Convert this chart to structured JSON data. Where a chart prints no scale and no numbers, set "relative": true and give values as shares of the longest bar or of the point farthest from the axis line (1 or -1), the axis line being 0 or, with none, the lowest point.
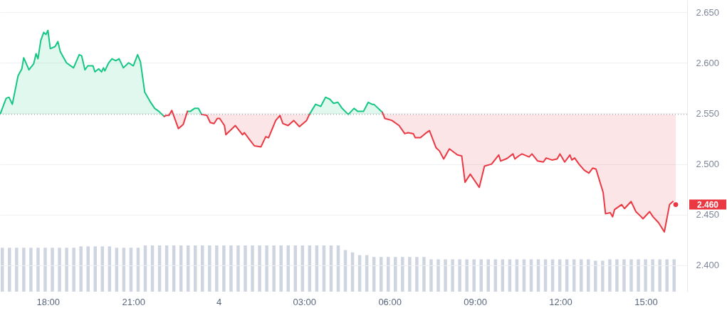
{
  "chart_data": [
    {
      "type": "line",
      "xlim": [
        "--01-03T16:19",
        "--01-04T16:27"
      ],
      "ylim": [
        2.374,
        2.662
      ],
      "xticks": [
        {
          "value": "--01-03T18:00",
          "label": "18:00"
        },
        {
          "value": "--01-03T21:00",
          "label": "21:00"
        },
        {
          "value": "--01-04T00:00",
          "label": "4"
        },
        {
          "value": "--01-04T03:00",
          "label": "03:00"
        },
        {
          "value": "--01-04T06:00",
          "label": "06:00"
        },
        {
          "value": "--01-04T09:00",
          "label": "09:00"
        },
        {
          "value": "--01-04T12:00",
          "label": "12:00"
        },
        {
          "value": "--01-04T15:00",
          "label": "15:00"
        }
      ],
      "yticks": [
        {
          "value": 2.4,
          "label": "2.400"
        },
        {
          "value": 2.45,
          "label": "2.450"
        },
        {
          "value": 2.5,
          "label": "2.500"
        },
        {
          "value": 2.55,
          "label": "2.550"
        },
        {
          "value": 2.6,
          "label": "2.600"
        },
        {
          "value": 2.65,
          "label": "2.650"
        }
      ],
      "grid": "y",
      "ref_lines": [
        {
          "axis": "y",
          "value": 2.549,
          "color": "#9aa0aa",
          "line_style": "dotted"
        }
      ],
      "annotations": [
        {
          "text": "2.460",
          "x": "--01-04T16:03",
          "y": 2.46
        }
      ],
      "series": [
        {
          "color": "#16c784",
          "x": [
            "--01-03T16:20",
            "--01-03T16:32",
            "--01-03T16:38",
            "--01-03T16:45",
            "--01-03T16:57",
            "--01-03T17:05",
            "--01-03T17:09",
            "--01-03T17:20",
            "--01-03T17:30",
            "--01-03T17:35",
            "--01-03T17:39",
            "--01-03T17:45",
            "--01-03T17:51",
            "--01-03T17:56",
            "--01-03T18:00",
            "--01-03T18:05",
            "--01-03T18:15",
            "--01-03T18:21",
            "--01-03T18:26",
            "--01-03T18:39",
            "--01-03T18:54",
            "--01-03T19:06",
            "--01-03T19:11",
            "--01-03T19:18",
            "--01-03T19:24",
            "--01-03T19:35",
            "--01-03T19:39",
            "--01-03T19:47",
            "--01-03T19:53",
            "--01-03T19:57",
            "--01-03T20:00",
            "--01-03T20:08",
            "--01-03T20:15",
            "--01-03T20:23",
            "--01-03T20:30",
            "--01-03T20:39",
            "--01-03T20:50",
            "--01-03T21:00",
            "--01-03T21:09",
            "--01-03T21:15",
            "--01-03T21:24",
            "--01-03T21:35",
            "--01-03T21:45",
            "--01-03T21:54",
            "--01-03T22:05",
            "--01-03T22:30",
            "--01-03T22:54",
            "--01-03T23:00",
            "--01-03T23:09",
            "--01-03T23:17",
            "--01-03T23:24",
            "--01-04T01:00",
            "--01-04T03:11",
            "--01-04T03:24",
            "--01-04T03:35",
            "--01-04T03:45",
            "--01-04T03:54",
            "--01-04T04:02",
            "--01-04T04:11",
            "--01-04T04:20",
            "--01-04T04:33",
            "--01-04T04:45",
            "--01-04T04:53",
            "--01-04T05:05",
            "--01-04T05:15",
            "--01-04T05:23",
            "--01-04T05:27",
            "--01-04T05:45"
          ],
          "values": [
            2.55,
            2.565,
            2.566,
            2.559,
            2.587,
            2.594,
            2.605,
            2.593,
            2.599,
            2.609,
            2.604,
            2.622,
            2.63,
            2.628,
            2.632,
            2.614,
            2.616,
            2.621,
            2.611,
            2.6,
            2.595,
            2.608,
            2.607,
            2.593,
            2.597,
            2.597,
            2.591,
            2.594,
            2.591,
            2.595,
            2.592,
            2.6,
            2.604,
            2.602,
            2.604,
            2.595,
            2.6,
            2.597,
            2.608,
            2.601,
            2.571,
            2.562,
            2.555,
            2.552,
            2.547,
            null,
            2.552,
            2.552,
            2.555,
            2.555,
            2.549,
            null,
            2.549,
            2.559,
            2.557,
            2.566,
            2.564,
            2.56,
            2.561,
            2.555,
            2.549,
            2.555,
            2.552,
            2.552,
            2.561,
            2.559,
            2.559,
            2.551
          ],
          "lower": [
            2.549,
            2.549,
            2.549,
            2.549,
            2.549,
            2.549,
            2.549,
            2.549,
            2.549,
            2.549,
            2.549,
            2.549,
            2.549,
            2.549,
            2.549,
            2.549,
            2.549,
            2.549,
            2.549,
            2.549,
            2.549,
            2.549,
            2.549,
            2.549,
            2.549,
            2.549,
            2.549,
            2.549,
            2.549,
            2.549,
            2.549,
            2.549,
            2.549,
            2.549,
            2.549,
            2.549,
            2.549,
            2.549,
            2.549,
            2.549,
            2.549,
            2.549,
            2.549,
            2.549,
            2.549,
            null,
            2.549,
            2.549,
            2.549,
            2.549,
            2.549,
            null,
            2.549,
            2.549,
            2.549,
            2.549,
            2.549,
            2.549,
            2.549,
            2.549,
            2.549,
            2.549,
            2.549,
            2.549,
            2.549,
            2.549,
            2.549,
            2.549
          ],
          "upper": [
            2.55,
            2.565,
            2.566,
            2.559,
            2.587,
            2.594,
            2.605,
            2.593,
            2.599,
            2.609,
            2.604,
            2.622,
            2.63,
            2.628,
            2.632,
            2.614,
            2.616,
            2.621,
            2.611,
            2.6,
            2.595,
            2.608,
            2.607,
            2.593,
            2.597,
            2.597,
            2.591,
            2.594,
            2.591,
            2.595,
            2.592,
            2.6,
            2.604,
            2.602,
            2.604,
            2.595,
            2.6,
            2.597,
            2.608,
            2.601,
            2.571,
            2.562,
            2.555,
            2.552,
            2.547,
            null,
            2.552,
            2.552,
            2.555,
            2.555,
            2.549,
            null,
            2.549,
            2.559,
            2.557,
            2.566,
            2.564,
            2.56,
            2.561,
            2.555,
            2.549,
            2.555,
            2.552,
            2.552,
            2.561,
            2.559,
            2.559,
            2.551
          ]
        },
        {
          "color": "#ea3943",
          "x": [
            "--01-03T22:05",
            "--01-03T22:09",
            "--01-03T22:15",
            "--01-03T22:21",
            "--01-03T22:35",
            "--01-03T22:45",
            "--01-03T22:54",
            "--01-03T23:12",
            "--01-03T23:24",
            "--01-03T23:35",
            "--01-03T23:42",
            "--01-03T23:50",
            "--01-03T23:57",
            "--01-04T00:02",
            "--01-04T00:12",
            "--01-04T00:15",
            "--01-04T00:35",
            "--01-04T00:50",
            "--01-04T00:54",
            "--01-04T01:05",
            "--01-04T01:15",
            "--01-04T01:29",
            "--01-04T01:39",
            "--01-04T01:45",
            "--01-04T02:00",
            "--01-04T02:09",
            "--01-04T02:15",
            "--01-04T02:26",
            "--01-04T02:38",
            "--01-04T02:50",
            "--01-04T03:05",
            "--01-04T03:11",
            "--01-04T04:30",
            "--01-04T05:45",
            "--01-04T05:50",
            "--01-04T06:05",
            "--01-04T06:20",
            "--01-04T06:32",
            "--01-04T06:39",
            "--01-04T06:50",
            "--01-04T06:54",
            "--01-04T07:05",
            "--01-04T07:15",
            "--01-04T07:24",
            "--01-04T07:38",
            "--01-04T07:45",
            "--01-04T07:54",
            "--01-04T08:06",
            "--01-04T08:23",
            "--01-04T08:32",
            "--01-04T08:39",
            "--01-04T08:50",
            "--01-04T09:09",
            "--01-04T09:20",
            "--01-04T09:35",
            "--01-04T09:50",
            "--01-04T09:54",
            "--01-04T10:05",
            "--01-04T10:09",
            "--01-04T10:20",
            "--01-04T10:24",
            "--01-04T10:32",
            "--01-04T10:39",
            "--01-04T10:54",
            "--01-04T11:00",
            "--01-04T11:12",
            "--01-04T11:24",
            "--01-04T11:30",
            "--01-04T11:42",
            "--01-04T11:53",
            "--01-04T11:59",
            "--01-04T12:09",
            "--01-04T12:20",
            "--01-04T12:24",
            "--01-04T12:30",
            "--01-04T12:39",
            "--01-04T12:50",
            "--01-04T13:00",
            "--01-04T13:08",
            "--01-04T13:15",
            "--01-04T13:30",
            "--01-04T13:35",
            "--01-04T13:45",
            "--01-04T13:50",
            "--01-04T13:54",
            "--01-04T14:09",
            "--01-04T14:15",
            "--01-04T14:29",
            "--01-04T14:39",
            "--01-04T14:50",
            "--01-04T14:54",
            "--01-04T15:08",
            "--01-04T15:15",
            "--01-04T15:27",
            "--01-04T15:39",
            "--01-04T15:50",
            "--01-04T15:57",
            "--01-04T16:03"
          ],
          "values": [
            2.547,
            2.548,
            2.548,
            2.553,
            2.535,
            2.539,
            2.552,
            null,
            2.549,
            2.548,
            2.541,
            2.54,
            2.545,
            2.545,
            2.538,
            2.529,
            2.538,
            2.529,
            2.531,
            2.524,
            2.518,
            2.517,
            2.527,
            2.526,
            2.543,
            2.548,
            2.54,
            2.538,
            2.543,
            2.537,
            2.543,
            2.549,
            null,
            2.551,
            2.545,
            2.543,
            2.538,
            2.53,
            2.531,
            2.53,
            2.526,
            2.526,
            2.53,
            2.533,
            2.516,
            2.513,
            2.505,
            2.515,
            2.509,
            2.508,
            2.482,
            2.49,
            2.477,
            2.498,
            2.5,
            2.509,
            2.503,
            2.505,
            2.506,
            2.51,
            2.505,
            2.508,
            2.51,
            2.507,
            2.51,
            2.503,
            2.502,
            2.506,
            2.504,
            2.505,
            2.51,
            2.502,
            2.509,
            2.504,
            2.506,
            2.5,
            2.494,
            2.491,
            2.496,
            2.495,
            2.472,
            2.451,
            2.452,
            2.448,
            2.455,
            2.46,
            2.456,
            2.463,
            2.453,
            2.448,
            2.446,
            2.453,
            2.448,
            2.442,
            2.433,
            2.46,
            2.463,
            2.46
          ],
          "lower": [
            2.547,
            2.548,
            2.548,
            2.553,
            2.535,
            2.539,
            2.552,
            null,
            2.549,
            2.548,
            2.541,
            2.54,
            2.545,
            2.545,
            2.538,
            2.529,
            2.538,
            2.529,
            2.531,
            2.524,
            2.518,
            2.517,
            2.527,
            2.526,
            2.543,
            2.548,
            2.54,
            2.538,
            2.543,
            2.537,
            2.543,
            2.549,
            null,
            2.551,
            2.545,
            2.543,
            2.538,
            2.53,
            2.531,
            2.53,
            2.526,
            2.526,
            2.53,
            2.533,
            2.516,
            2.513,
            2.505,
            2.515,
            2.509,
            2.508,
            2.482,
            2.49,
            2.477,
            2.498,
            2.5,
            2.509,
            2.503,
            2.505,
            2.506,
            2.51,
            2.505,
            2.508,
            2.51,
            2.507,
            2.51,
            2.503,
            2.502,
            2.506,
            2.504,
            2.505,
            2.51,
            2.502,
            2.509,
            2.504,
            2.506,
            2.5,
            2.494,
            2.491,
            2.496,
            2.495,
            2.472,
            2.451,
            2.452,
            2.448,
            2.455,
            2.46,
            2.456,
            2.463,
            2.453,
            2.448,
            2.446,
            2.453,
            2.448,
            2.442,
            2.433,
            2.46,
            2.463,
            2.46
          ],
          "upper": [
            2.549,
            2.549,
            2.549,
            2.549,
            2.549,
            2.549,
            2.549,
            null,
            2.549,
            2.549,
            2.549,
            2.549,
            2.549,
            2.549,
            2.549,
            2.549,
            2.549,
            2.549,
            2.549,
            2.549,
            2.549,
            2.549,
            2.549,
            2.549,
            2.549,
            2.549,
            2.549,
            2.549,
            2.549,
            2.549,
            2.549,
            2.549,
            null,
            2.549,
            2.549,
            2.549,
            2.549,
            2.549,
            2.549,
            2.549,
            2.549,
            2.549,
            2.549,
            2.549,
            2.549,
            2.549,
            2.549,
            2.549,
            2.549,
            2.549,
            2.549,
            2.549,
            2.549,
            2.549,
            2.549,
            2.549,
            2.549,
            2.549,
            2.549,
            2.549,
            2.549,
            2.549,
            2.549,
            2.549,
            2.549,
            2.549,
            2.549,
            2.549,
            2.549,
            2.549,
            2.549,
            2.549,
            2.549,
            2.549,
            2.549,
            2.549,
            2.549,
            2.549,
            2.549,
            2.549,
            2.549,
            2.549,
            2.549,
            2.549,
            2.549,
            2.549,
            2.549,
            2.549,
            2.549,
            2.549,
            2.549,
            2.549,
            2.549,
            2.549,
            2.549,
            2.549,
            2.549,
            2.549
          ]
        }
      ]
    },
    {
      "type": "bar",
      "relative": true,
      "color": "#cfd5e0",
      "categories": [
        null,
        null,
        null,
        null,
        null,
        null,
        null,
        null,
        null,
        null,
        null,
        null,
        null,
        null,
        null,
        null,
        null,
        null,
        null,
        null,
        null,
        null,
        null,
        null,
        null,
        null,
        null,
        null,
        null,
        null,
        null,
        null,
        null,
        null,
        null,
        null,
        null,
        null,
        null,
        null,
        null,
        null,
        null,
        null,
        null,
        null,
        null,
        null,
        null,
        null,
        null,
        null,
        null,
        null,
        null,
        null,
        null,
        null,
        null,
        null,
        null,
        null,
        null,
        null,
        null,
        null,
        null,
        null,
        null,
        null,
        null,
        null,
        null,
        null,
        null,
        null,
        null,
        null,
        null,
        null,
        null,
        null,
        null,
        null,
        null,
        null,
        null,
        null,
        null,
        null,
        null,
        null,
        null,
        null,
        null
      ],
      "values": [
        0.95,
        0.95,
        0.95,
        0.95,
        0.95,
        0.95,
        0.95,
        0.95,
        0.95,
        0.95,
        0.95,
        0.98,
        0.98,
        0.98,
        0.98,
        0.98,
        0.95,
        0.95,
        0.95,
        0.95,
        1,
        1,
        1,
        1,
        1,
        1,
        1,
        1,
        1,
        1,
        1,
        1,
        1,
        1,
        1,
        1,
        1,
        1,
        1,
        1,
        1,
        1,
        1,
        1,
        1,
        1,
        1,
        1,
        0.9,
        0.85,
        0.79,
        0.79,
        0.75,
        0.75,
        0.75,
        0.75,
        0.75,
        0.75,
        0.75,
        0.75,
        0.7,
        0.7,
        0.7,
        0.7,
        0.7,
        0.7,
        0.7,
        0.7,
        0.7,
        0.7,
        0.7,
        0.7,
        0.7,
        0.7,
        0.7,
        0.7,
        0.7,
        0.7,
        0.7,
        0.7,
        0.7,
        0.7,
        0.7,
        0.67,
        0.67,
        0.7,
        0.7,
        0.7,
        0.7,
        0.7,
        0.7,
        0.7,
        0.7,
        0.7,
        0.7
      ]
    }
  ]
}
